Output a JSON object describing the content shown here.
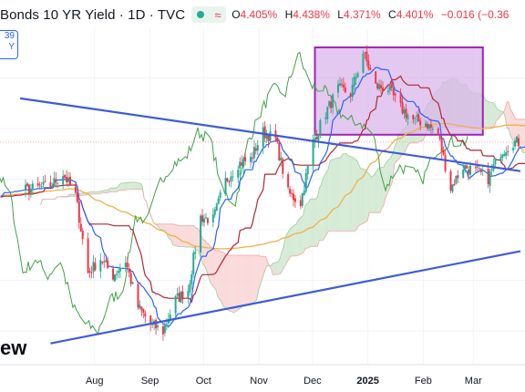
{
  "header": {
    "symbol": "Bonds 10 YR Yield · 1D · TVC",
    "open_label": "O",
    "open": "4.405%",
    "high_label": "H",
    "high": "4.438%",
    "low_label": "L",
    "low": "4.371%",
    "close_label": "C",
    "close": "4.401%",
    "change": "−0.016 (−0.36",
    "last_price_partial": "39",
    "last_price_partial2": "Y",
    "watermark": "ew"
  },
  "colors": {
    "up": "#22ab94",
    "down": "#f23645",
    "tenkan": "#2962ff",
    "kijun": "#b22833",
    "lagging": "#43a047",
    "sma": "#f0b04c",
    "trendline": "#3d5bd8",
    "highlight_fill": "#d9b6ea",
    "highlight_stroke": "#9c27b0",
    "cloud_bull": "#cfe8cf",
    "cloud_bear": "#f9d3d3"
  },
  "chart_data": {
    "type": "candlestick",
    "unit": "%",
    "x_axis_labels": [
      "Aug",
      "Sep",
      "Oct",
      "Nov",
      "Dec",
      "2025",
      "Feb",
      "Mar"
    ],
    "y_axis_visible": false,
    "y_range": [
      3.55,
      4.85
    ],
    "series": [
      {
        "name": "price",
        "style": "candlestick",
        "anchors": [
          [
            "2024-07-15",
            4.22
          ],
          [
            "2024-07-22",
            4.27
          ],
          [
            "2024-07-29",
            4.18
          ],
          [
            "2024-08-05",
            3.86
          ],
          [
            "2024-08-12",
            3.92
          ],
          [
            "2024-08-19",
            3.85
          ],
          [
            "2024-08-26",
            3.91
          ],
          [
            "2024-09-02",
            3.72
          ],
          [
            "2024-09-09",
            3.65
          ],
          [
            "2024-09-16",
            3.62
          ],
          [
            "2024-09-23",
            3.75
          ],
          [
            "2024-09-30",
            3.79
          ],
          [
            "2024-10-07",
            4.09
          ],
          [
            "2024-10-14",
            4.08
          ],
          [
            "2024-10-21",
            4.24
          ],
          [
            "2024-10-28",
            4.31
          ],
          [
            "2024-11-04",
            4.33
          ],
          [
            "2024-11-11",
            4.44
          ],
          [
            "2024-11-18",
            4.41
          ],
          [
            "2024-11-25",
            4.19
          ],
          [
            "2024-12-02",
            4.15
          ],
          [
            "2024-12-09",
            4.4
          ],
          [
            "2024-12-16",
            4.52
          ],
          [
            "2024-12-23",
            4.62
          ],
          [
            "2024-12-30",
            4.6
          ],
          [
            "2025-01-06",
            4.77
          ],
          [
            "2025-01-13",
            4.63
          ],
          [
            "2025-01-20",
            4.62
          ],
          [
            "2025-01-27",
            4.54
          ],
          [
            "2025-02-03",
            4.49
          ],
          [
            "2025-02-10",
            4.48
          ],
          [
            "2025-02-17",
            4.43
          ],
          [
            "2025-02-24",
            4.21
          ],
          [
            "2025-03-03",
            4.3
          ],
          [
            "2025-03-10",
            4.28
          ],
          [
            "2025-03-17",
            4.25
          ],
          [
            "2025-03-24",
            4.36
          ],
          [
            "2025-03-31",
            4.4
          ]
        ]
      },
      {
        "name": "tenkan",
        "style": "line"
      },
      {
        "name": "kijun",
        "style": "line"
      },
      {
        "name": "lagging",
        "style": "line"
      },
      {
        "name": "sma",
        "style": "line"
      },
      {
        "name": "cloud",
        "style": "area"
      }
    ],
    "drawings": {
      "upper_trendline": [
        [
          "2024-06-28",
          4.58
        ],
        [
          "2025-04-04",
          4.28
        ]
      ],
      "lower_trendline": [
        [
          "2024-07-15",
          3.57
        ],
        [
          "2025-04-04",
          3.95
        ]
      ],
      "highlight_box": {
        "from": "2024-12-10",
        "to": "2025-03-14",
        "low": 4.43,
        "high": 4.79
      }
    }
  }
}
